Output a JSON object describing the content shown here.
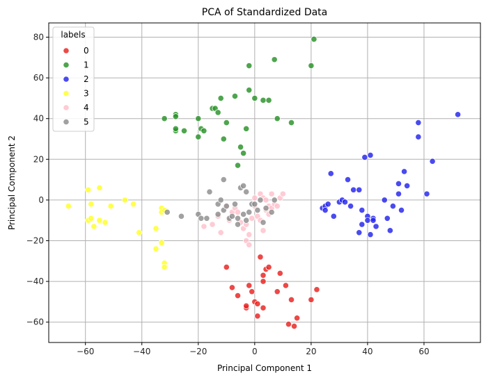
{
  "chart_data": {
    "type": "scatter",
    "title": "PCA of Standardized Data",
    "xlabel": "Principal Component 1",
    "ylabel": "Principal Component 2",
    "xlim": [
      -73,
      80
    ],
    "ylim": [
      -70,
      87
    ],
    "xticks": [
      -60,
      -40,
      -20,
      0,
      20,
      40,
      60
    ],
    "yticks": [
      -60,
      -40,
      -20,
      0,
      20,
      40,
      60,
      80
    ],
    "grid": true,
    "legend": {
      "title": "labels",
      "position": "top-left"
    },
    "series": [
      {
        "name": "0",
        "color": "#e8211f",
        "points": [
          [
            -10,
            -33
          ],
          [
            -8,
            -43
          ],
          [
            -6,
            -47
          ],
          [
            -3,
            -53
          ],
          [
            -3,
            -52
          ],
          [
            -2,
            -42
          ],
          [
            -1,
            -45
          ],
          [
            0,
            -50
          ],
          [
            1,
            -57
          ],
          [
            1,
            -51
          ],
          [
            2,
            -28
          ],
          [
            3,
            -37
          ],
          [
            3,
            -53
          ],
          [
            3,
            -40
          ],
          [
            4,
            -34
          ],
          [
            5,
            -33
          ],
          [
            8,
            -45
          ],
          [
            9,
            -36
          ],
          [
            11,
            -42
          ],
          [
            12,
            -61
          ],
          [
            13,
            -49
          ],
          [
            14,
            -62
          ],
          [
            15,
            -58
          ],
          [
            20,
            -49
          ],
          [
            22,
            -44
          ]
        ]
      },
      {
        "name": "1",
        "color": "#279127",
        "points": [
          [
            -32,
            40
          ],
          [
            -28,
            42
          ],
          [
            -28,
            41
          ],
          [
            -28,
            34
          ],
          [
            -28,
            35
          ],
          [
            -25,
            34
          ],
          [
            -20,
            31
          ],
          [
            -20,
            40
          ],
          [
            -19,
            35
          ],
          [
            -18,
            34
          ],
          [
            -15,
            45
          ],
          [
            -14,
            45
          ],
          [
            -13,
            43
          ],
          [
            -12,
            50
          ],
          [
            -11,
            30
          ],
          [
            -10,
            38
          ],
          [
            -7,
            51
          ],
          [
            -6,
            17
          ],
          [
            -5,
            26
          ],
          [
            -4,
            23
          ],
          [
            -3,
            35
          ],
          [
            -2,
            54
          ],
          [
            -2,
            66
          ],
          [
            0,
            50
          ],
          [
            3,
            49
          ],
          [
            5,
            49
          ],
          [
            7,
            69
          ],
          [
            8,
            40
          ],
          [
            13,
            38
          ],
          [
            20,
            66
          ],
          [
            21,
            79
          ]
        ]
      },
      {
        "name": "2",
        "color": "#2222ee",
        "points": [
          [
            24,
            -4
          ],
          [
            25,
            -3
          ],
          [
            25,
            -5
          ],
          [
            26,
            -2
          ],
          [
            27,
            13
          ],
          [
            28,
            -8
          ],
          [
            30,
            -1
          ],
          [
            31,
            0
          ],
          [
            32,
            -1
          ],
          [
            33,
            10
          ],
          [
            34,
            -3
          ],
          [
            35,
            5
          ],
          [
            37,
            5
          ],
          [
            37,
            -16
          ],
          [
            38,
            -5
          ],
          [
            38,
            -12
          ],
          [
            39,
            21
          ],
          [
            40,
            -8
          ],
          [
            40,
            -10
          ],
          [
            41,
            22
          ],
          [
            41,
            -17
          ],
          [
            42,
            -9
          ],
          [
            42,
            -10
          ],
          [
            43,
            -13
          ],
          [
            46,
            0
          ],
          [
            47,
            -9
          ],
          [
            48,
            -15
          ],
          [
            49,
            -3
          ],
          [
            51,
            8
          ],
          [
            51,
            3
          ],
          [
            52,
            -5
          ],
          [
            53,
            14
          ],
          [
            54,
            7
          ],
          [
            58,
            31
          ],
          [
            58,
            38
          ],
          [
            61,
            3
          ],
          [
            63,
            19
          ],
          [
            72,
            42
          ]
        ]
      },
      {
        "name": "3",
        "color": "#ffff26",
        "points": [
          [
            -66,
            -3
          ],
          [
            -59,
            -10
          ],
          [
            -59,
            5
          ],
          [
            -58,
            -9
          ],
          [
            -58,
            -2
          ],
          [
            -57,
            -13
          ],
          [
            -55,
            6
          ],
          [
            -55,
            -10
          ],
          [
            -53,
            -11
          ],
          [
            -51,
            -3
          ],
          [
            -46,
            0
          ],
          [
            -43,
            -2
          ],
          [
            -41,
            -16
          ],
          [
            -35,
            -14
          ],
          [
            -35,
            -24
          ],
          [
            -33,
            -4
          ],
          [
            -33,
            -21
          ],
          [
            -33,
            -6
          ],
          [
            -32,
            -31
          ],
          [
            -32,
            -33
          ],
          [
            -32,
            -5
          ]
        ]
      },
      {
        "name": "4",
        "color": "#ffc0cb",
        "points": [
          [
            -18,
            -13
          ],
          [
            -15,
            -12
          ],
          [
            -13,
            -8
          ],
          [
            -12,
            -16
          ],
          [
            -10,
            -3
          ],
          [
            -9,
            -10
          ],
          [
            -8,
            -6
          ],
          [
            -7,
            -4
          ],
          [
            -6,
            -6
          ],
          [
            -5,
            -11
          ],
          [
            -4,
            -14
          ],
          [
            -3,
            -20
          ],
          [
            -3,
            -12
          ],
          [
            -2,
            -17
          ],
          [
            -2,
            -22
          ],
          [
            -1,
            -9
          ],
          [
            0,
            -3
          ],
          [
            0,
            1
          ],
          [
            1,
            -8
          ],
          [
            2,
            -10
          ],
          [
            2,
            3
          ],
          [
            3,
            1
          ],
          [
            3,
            -15
          ],
          [
            4,
            0
          ],
          [
            4,
            -5
          ],
          [
            5,
            -3
          ],
          [
            5,
            -7
          ],
          [
            6,
            -4
          ],
          [
            6,
            3
          ],
          [
            7,
            -2
          ],
          [
            8,
            -3
          ],
          [
            9,
            1
          ],
          [
            10,
            3
          ]
        ]
      },
      {
        "name": "5",
        "color": "#8c8c8c",
        "points": [
          [
            -31,
            -6
          ],
          [
            -26,
            -8
          ],
          [
            -20,
            -7
          ],
          [
            -19,
            -9
          ],
          [
            -17,
            -9
          ],
          [
            -16,
            4
          ],
          [
            -13,
            -7
          ],
          [
            -13,
            -2
          ],
          [
            -12,
            0
          ],
          [
            -11,
            -5
          ],
          [
            -11,
            10
          ],
          [
            -10,
            -3
          ],
          [
            -9,
            -9
          ],
          [
            -8,
            -8
          ],
          [
            -7,
            -2
          ],
          [
            -6,
            -12
          ],
          [
            -6,
            -9
          ],
          [
            -5,
            6
          ],
          [
            -4,
            7
          ],
          [
            -4,
            -7
          ],
          [
            -3,
            -10
          ],
          [
            -3,
            4
          ],
          [
            -2,
            -6
          ],
          [
            -1,
            -2
          ],
          [
            0,
            -2
          ],
          [
            1,
            -5
          ],
          [
            2,
            0
          ],
          [
            3,
            -11
          ],
          [
            4,
            -4
          ],
          [
            6,
            -6
          ],
          [
            7,
            0
          ]
        ]
      }
    ]
  }
}
